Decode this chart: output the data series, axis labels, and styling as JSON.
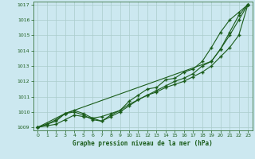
{
  "title": "Graphe pression niveau de la mer (hPa)",
  "bg_color": "#cce8f0",
  "grid_color": "#aacccc",
  "line_color": "#1a5c1a",
  "xlim": [
    -0.5,
    23.5
  ],
  "ylim": [
    1008.8,
    1017.2
  ],
  "yticks": [
    1009,
    1010,
    1011,
    1012,
    1013,
    1014,
    1015,
    1016,
    1017
  ],
  "xticks": [
    0,
    1,
    2,
    3,
    4,
    5,
    6,
    7,
    8,
    9,
    10,
    11,
    12,
    13,
    14,
    15,
    16,
    17,
    18,
    19,
    20,
    21,
    22,
    23
  ],
  "lines": [
    {
      "x": [
        0,
        1,
        2,
        3,
        4,
        5,
        6,
        7,
        8,
        9,
        10,
        11,
        12,
        13,
        14,
        15,
        16,
        17,
        18,
        19,
        20,
        21,
        22,
        23
      ],
      "y": [
        1009.0,
        1009.1,
        1009.2,
        1009.5,
        1009.8,
        1009.7,
        1009.6,
        1009.7,
        1009.9,
        1010.1,
        1010.5,
        1010.8,
        1011.1,
        1011.3,
        1011.6,
        1011.8,
        1012.0,
        1012.3,
        1012.6,
        1013.0,
        1013.6,
        1014.2,
        1015.0,
        1017.0
      ]
    },
    {
      "x": [
        0,
        1,
        2,
        3,
        4,
        5,
        6,
        7,
        8,
        9,
        10,
        11,
        12,
        13,
        14,
        15,
        16,
        17,
        18,
        19,
        20,
        21,
        22,
        23
      ],
      "y": [
        1009.0,
        1009.2,
        1009.4,
        1009.9,
        1010.0,
        1009.8,
        1009.5,
        1009.4,
        1009.7,
        1010.0,
        1010.4,
        1010.8,
        1011.1,
        1011.4,
        1011.7,
        1012.0,
        1012.2,
        1012.5,
        1013.0,
        1013.3,
        1014.1,
        1015.0,
        1016.0,
        1017.0
      ]
    },
    {
      "x": [
        0,
        1,
        2,
        3,
        4,
        5,
        6,
        7,
        8,
        9,
        10,
        11,
        12,
        13,
        14,
        15,
        16,
        17,
        18,
        19,
        20,
        21,
        22,
        23
      ],
      "y": [
        1009.0,
        1009.2,
        1009.5,
        1009.9,
        1010.1,
        1009.9,
        1009.6,
        1009.4,
        1009.8,
        1010.1,
        1010.7,
        1011.1,
        1011.5,
        1011.6,
        1012.1,
        1012.2,
        1012.6,
        1012.8,
        1013.3,
        1014.2,
        1015.2,
        1016.0,
        1016.5,
        1017.0
      ]
    },
    {
      "x": [
        0,
        3,
        19,
        20,
        21,
        22,
        23
      ],
      "y": [
        1009.0,
        1009.9,
        1013.3,
        1014.1,
        1015.2,
        1016.3,
        1017.0
      ]
    }
  ]
}
